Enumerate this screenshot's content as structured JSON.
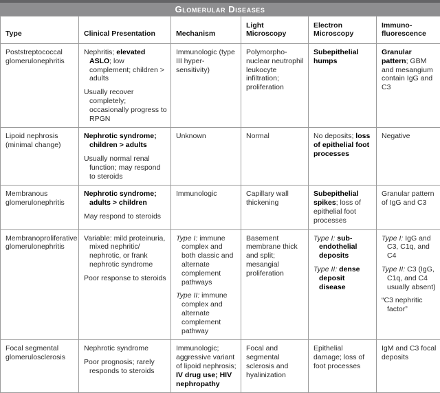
{
  "title": "Glomerular Diseases",
  "columns": [
    "Type",
    "Clinical Presentation",
    "Mechanism",
    "Light Microscopy",
    "Electron Microscopy",
    "Immuno-fluorescence"
  ],
  "column_keys": [
    "type",
    "clinical-presentation",
    "mechanism",
    "light-microscopy",
    "electron-microscopy",
    "immunofluorescence"
  ],
  "colors": {
    "top_strip_bg": "#646466",
    "title_bar_bg": "#8e8e90",
    "title_text": "#ffffff",
    "border": "#9b9b9b",
    "header_text": "#141414",
    "body_text": "#2a2a2a",
    "bold_text": "#000000"
  },
  "rows": [
    {
      "cells": [
        [
          [
            {
              "t": "Poststreptococcal glomerulonephritis"
            }
          ]
        ],
        [
          [
            {
              "t": "Nephritis; "
            },
            {
              "t": "elevated ASLO",
              "b": true
            },
            {
              "t": "; low complement; children > adults"
            }
          ],
          [
            {
              "t": "Usually recover completely; occasionally progress to RPGN"
            }
          ]
        ],
        [
          [
            {
              "t": "Immunologic (type III hyper-sensitivity)"
            }
          ]
        ],
        [
          [
            {
              "t": "Polymorpho-nuclear neutrophil leukocyte infiltration; proliferation"
            }
          ]
        ],
        [
          [
            {
              "t": "Subepithelial humps",
              "b": true
            }
          ]
        ],
        [
          [
            {
              "t": "Granular pattern",
              "b": true
            },
            {
              "t": "; GBM and mesangium contain IgG and C3"
            }
          ]
        ]
      ]
    },
    {
      "cells": [
        [
          [
            {
              "t": "Lipoid nephrosis (minimal change)"
            }
          ]
        ],
        [
          [
            {
              "t": "Nephrotic syndrome; children > adults",
              "b": true
            }
          ],
          [
            {
              "t": "Usually normal renal function; may respond to steroids"
            }
          ]
        ],
        [
          [
            {
              "t": "Unknown"
            }
          ]
        ],
        [
          [
            {
              "t": "Normal"
            }
          ]
        ],
        [
          [
            {
              "t": "No deposits; "
            },
            {
              "t": "loss of epithelial foot processes",
              "b": true
            }
          ]
        ],
        [
          [
            {
              "t": "Negative"
            }
          ]
        ]
      ]
    },
    {
      "cells": [
        [
          [
            {
              "t": "Membranous glomerulonephritis"
            }
          ]
        ],
        [
          [
            {
              "t": "Nephrotic syndrome; adults > children",
              "b": true
            }
          ],
          [
            {
              "t": "May respond to steroids"
            }
          ]
        ],
        [
          [
            {
              "t": "Immunologic"
            }
          ]
        ],
        [
          [
            {
              "t": "Capillary wall thickening"
            }
          ]
        ],
        [
          [
            {
              "t": "Subepithelial spikes",
              "b": true
            },
            {
              "t": "; loss of epithelial foot processes"
            }
          ]
        ],
        [
          [
            {
              "t": "Granular pattern of IgG and C3"
            }
          ]
        ]
      ]
    },
    {
      "cells": [
        [
          [
            {
              "t": "Membranoproliferative glomerulonephritis"
            }
          ]
        ],
        [
          [
            {
              "t": "Variable: mild proteinuria, mixed nephritic/ nephrotic, or frank nephrotic syndrome"
            }
          ],
          [
            {
              "t": "Poor response to steroids"
            }
          ]
        ],
        [
          [
            {
              "t": "Type I:",
              "i": true
            },
            {
              "t": " immune complex and both classic and alternate complement pathways"
            }
          ],
          [
            {
              "t": "Type II:",
              "i": true
            },
            {
              "t": " immune complex and alternate complement pathway"
            }
          ]
        ],
        [
          [
            {
              "t": "Basement membrane thick and split; mesangial proliferation"
            }
          ]
        ],
        [
          [
            {
              "t": "Type I:",
              "i": true
            },
            {
              "t": " "
            },
            {
              "t": "sub-endothelial deposits",
              "b": true
            }
          ],
          [
            {
              "t": "Type II:",
              "i": true
            },
            {
              "t": " "
            },
            {
              "t": "dense deposit disease",
              "b": true
            }
          ]
        ],
        [
          [
            {
              "t": "Type I:",
              "i": true
            },
            {
              "t": " IgG and C3, C1q, and C4"
            }
          ],
          [
            {
              "t": "Type II:",
              "i": true
            },
            {
              "t": " C3 (IgG, C1q, and C4 usually absent)"
            }
          ],
          [
            {
              "t": "“C3 nephritic factor”"
            }
          ]
        ]
      ]
    },
    {
      "cells": [
        [
          [
            {
              "t": "Focal segmental glomerulosclerosis"
            }
          ]
        ],
        [
          [
            {
              "t": "Nephrotic syndrome"
            }
          ],
          [
            {
              "t": "Poor prognosis; rarely responds to steroids"
            }
          ]
        ],
        [
          [
            {
              "t": "Immunologic; aggressive variant of lipoid nephrosis; "
            },
            {
              "t": "IV drug use; HIV nephropathy",
              "b": true
            }
          ]
        ],
        [
          [
            {
              "t": "Focal and segmental sclerosis and hyalinization"
            }
          ]
        ],
        [
          [
            {
              "t": "Epithelial damage; loss of foot processes"
            }
          ]
        ],
        [
          [
            {
              "t": "IgM and C3 focal deposits"
            }
          ]
        ]
      ]
    }
  ]
}
